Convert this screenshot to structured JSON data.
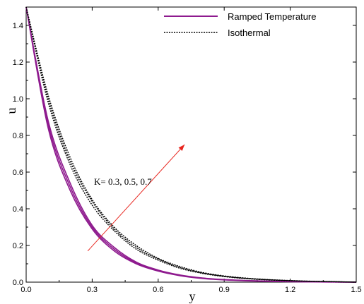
{
  "chart_data": {
    "type": "line",
    "xlabel": "y",
    "ylabel": "u",
    "xlim": [
      0,
      1.5
    ],
    "ylim": [
      0,
      1.5
    ],
    "x_ticks": [
      "0.0",
      "0.3",
      "0.6",
      "0.9",
      "1.2",
      "1.5"
    ],
    "y_ticks": [
      "0.0",
      "0.2",
      "0.4",
      "0.6",
      "0.8",
      "1.0",
      "1.2",
      "1.4"
    ],
    "grid": false,
    "legend_position": "top-right",
    "annotation": "K= 0.3, 0.5, 0.7",
    "x": [
      0.0,
      0.1,
      0.2,
      0.3,
      0.4,
      0.5,
      0.6,
      0.7,
      0.8,
      0.9,
      1.0,
      1.1,
      1.2,
      1.3,
      1.4,
      1.5
    ],
    "series": [
      {
        "name": "Ramped Temperature",
        "group": "ramped",
        "color": "#8e1a8e",
        "dash": "solid",
        "values": [
          1.5,
          0.84,
          0.5,
          0.29,
          0.17,
          0.1,
          0.06,
          0.035,
          0.02,
          0.012,
          0.007,
          0.004,
          0.002,
          0.001,
          0.0005,
          0.0
        ]
      },
      {
        "name": "",
        "group": "ramped",
        "color": "#8e1a8e",
        "dash": "solid",
        "values": [
          1.5,
          0.86,
          0.52,
          0.3,
          0.18,
          0.105,
          0.063,
          0.037,
          0.022,
          0.013,
          0.008,
          0.005,
          0.003,
          0.0015,
          0.0007,
          0.0
        ]
      },
      {
        "name": "",
        "group": "ramped",
        "color": "#8e1a8e",
        "dash": "solid",
        "values": [
          1.5,
          0.88,
          0.54,
          0.31,
          0.19,
          0.11,
          0.066,
          0.039,
          0.023,
          0.014,
          0.009,
          0.0055,
          0.0035,
          0.002,
          0.001,
          0.0
        ]
      },
      {
        "name": "Isothermal",
        "group": "iso",
        "color": "#000000",
        "dash": "dotted",
        "values": [
          1.5,
          0.98,
          0.64,
          0.42,
          0.28,
          0.18,
          0.12,
          0.075,
          0.048,
          0.03,
          0.019,
          0.012,
          0.007,
          0.004,
          0.002,
          0.0
        ]
      },
      {
        "name": "",
        "group": "iso",
        "color": "#000000",
        "dash": "dotted",
        "values": [
          1.5,
          1.0,
          0.66,
          0.44,
          0.29,
          0.19,
          0.125,
          0.08,
          0.05,
          0.032,
          0.02,
          0.013,
          0.008,
          0.0045,
          0.0025,
          0.0
        ]
      },
      {
        "name": "",
        "group": "iso",
        "color": "#000000",
        "dash": "dotted",
        "values": [
          1.5,
          1.02,
          0.68,
          0.45,
          0.3,
          0.2,
          0.13,
          0.085,
          0.053,
          0.034,
          0.022,
          0.014,
          0.009,
          0.005,
          0.003,
          0.0
        ]
      }
    ],
    "arrow": {
      "color": "#e8261f",
      "from": [
        0.28,
        0.17
      ],
      "to": [
        0.72,
        0.75
      ]
    },
    "legend": [
      {
        "label": "Ramped Temperature",
        "color": "#8e1a8e",
        "dash": "solid"
      },
      {
        "label": "Isothermal",
        "color": "#000000",
        "dash": "dotted"
      }
    ]
  }
}
